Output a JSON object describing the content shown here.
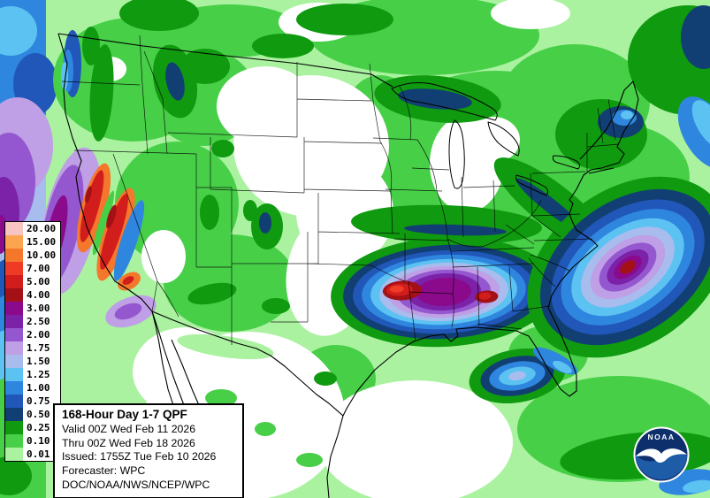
{
  "page": {
    "background": "#FFFFFF"
  },
  "legend": {
    "entries": [
      {
        "value": "20.00",
        "color": "#F8C3C3"
      },
      {
        "value": "15.00",
        "color": "#FCA551"
      },
      {
        "value": "10.00",
        "color": "#F4772B"
      },
      {
        "value": "7.00",
        "color": "#EF3B25"
      },
      {
        "value": "5.00",
        "color": "#D21D1D"
      },
      {
        "value": "4.00",
        "color": "#A31016"
      },
      {
        "value": "3.00",
        "color": "#8B0A8B"
      },
      {
        "value": "2.50",
        "color": "#7B22A8"
      },
      {
        "value": "2.00",
        "color": "#9557CF"
      },
      {
        "value": "1.75",
        "color": "#BF9FE5"
      },
      {
        "value": "1.50",
        "color": "#A9BCEE"
      },
      {
        "value": "1.25",
        "color": "#5BC2F2"
      },
      {
        "value": "1.00",
        "color": "#2F86DE"
      },
      {
        "value": "0.75",
        "color": "#2057B8"
      },
      {
        "value": "0.50",
        "color": "#123F73"
      },
      {
        "value": "0.25",
        "color": "#0F9A0F"
      },
      {
        "value": "0.10",
        "color": "#48CF48"
      },
      {
        "value": "0.01",
        "color": "#AAF2A0"
      }
    ]
  },
  "info_box": {
    "title": "168-Hour Day 1-7 QPF",
    "line_valid": "Valid 00Z Wed Feb 11 2026",
    "line_thru": "Thru 00Z Wed Feb 18 2026",
    "line_issued": "Issued: 1755Z Tue Feb 10 2026",
    "line_forecaster": "Forecaster: WPC",
    "line_agency": "DOC/NOAA/NWS/NCEP/WPC"
  },
  "logo": {
    "text": "NOAA"
  }
}
